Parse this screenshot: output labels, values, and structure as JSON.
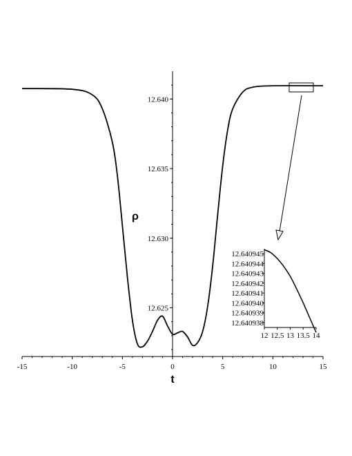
{
  "chart_data": [
    {
      "type": "line",
      "xlabel": "t",
      "ylabel": "ρ",
      "xlim": [
        -15,
        15
      ],
      "ylim": [
        12.6215,
        12.642
      ],
      "x_ticks": [
        "-15",
        "-10",
        "-5",
        "0",
        "5",
        "10",
        "15"
      ],
      "y_ticks": [
        "12.625",
        "12.630",
        "12.635",
        "12.640"
      ],
      "series": [
        {
          "x": [
            -15,
            -10,
            -8,
            -7,
            -6,
            -5.5,
            -5,
            -4.5,
            -4,
            -3.5,
            -3,
            -2.5,
            -2,
            -1.5,
            -1,
            -0.5,
            0,
            0.5,
            1,
            1.5,
            2,
            2.5,
            3,
            3.5,
            4,
            4.5,
            5,
            5.5,
            6,
            7,
            8,
            10,
            15
          ],
          "y": [
            12.64075,
            12.6407,
            12.6403,
            12.6393,
            12.6369,
            12.6345,
            12.6309,
            12.6272,
            12.6241,
            12.6224,
            12.6222,
            12.6226,
            12.6233,
            12.6241,
            12.6244,
            12.6237,
            12.6231,
            12.6232,
            12.6233,
            12.6229,
            12.6223,
            12.6225,
            12.6233,
            12.6251,
            12.628,
            12.6317,
            12.6352,
            12.6378,
            12.6393,
            12.6405,
            12.64085,
            12.64095,
            12.64095
          ]
        }
      ]
    },
    {
      "type": "line",
      "inset": true,
      "xlim": [
        12,
        14
      ],
      "ylim": [
        12.6409375,
        12.6409455
      ],
      "x_ticks": [
        "12",
        "12.5",
        "13",
        "13.5",
        "14"
      ],
      "y_ticks": [
        "12.640945",
        "12.640944",
        "12.640943",
        "12.640942",
        "12.640941",
        "12.640940",
        "12.640939",
        "12.640938"
      ],
      "series": [
        {
          "x": [
            12,
            12.25,
            12.5,
            12.75,
            13,
            13.25,
            13.5,
            13.75,
            14
          ],
          "y": [
            12.6409454,
            12.6409451,
            12.6409445,
            12.6409437,
            12.6409427,
            12.6409414,
            12.64094,
            12.6409385,
            12.640937
          ]
        }
      ]
    }
  ]
}
